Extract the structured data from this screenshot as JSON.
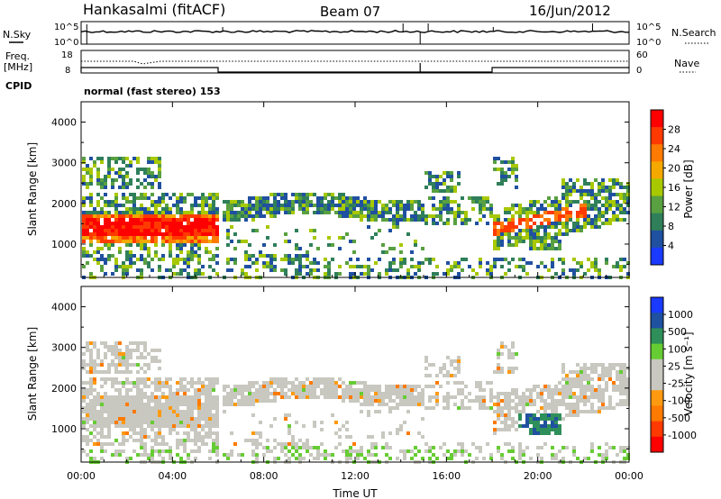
{
  "header": {
    "station": "Hankasalmi (fitACF)",
    "beam": "Beam 07",
    "date": "16/Jun/2012"
  },
  "top_panel": {
    "left_label": "N.Sky",
    "right_label": "N.Search",
    "left_ticks": [
      "10^5",
      "10^0"
    ],
    "right_ticks": [
      "10^5",
      "10^0"
    ]
  },
  "freq_panel": {
    "left_label_1": "Freq.",
    "left_label_2": "[MHz]",
    "right_label": "Nave",
    "left_ticks": [
      "18",
      "8"
    ],
    "right_ticks": [
      "60",
      "0"
    ],
    "cpid_label": "CPID",
    "mode_text": "normal (fast stereo) 153"
  },
  "chart_data": [
    {
      "type": "heatmap",
      "name": "power",
      "ylabel": "Slant Range [km]",
      "xlabel": "Time UT",
      "yticks": [
        "4000",
        "3000",
        "2000",
        "1000"
      ],
      "ylim": [
        180,
        4500
      ],
      "colorbar_label": "Power [dB]",
      "colorbar_ticks": [
        "28",
        "24",
        "20",
        "16",
        "12",
        "8",
        "4"
      ],
      "colorbar_colors": [
        "#ff0000",
        "#ff3a00",
        "#ff7a00",
        "#f4a800",
        "#a8c800",
        "#58a040",
        "#2f7f5a",
        "#2050a0",
        "#1a3aff"
      ]
    },
    {
      "type": "heatmap",
      "name": "velocity",
      "ylabel": "Slant Range [km]",
      "xlabel": "Time UT",
      "yticks": [
        "4000",
        "3000",
        "2000",
        "1000"
      ],
      "ylim": [
        180,
        4500
      ],
      "colorbar_label": "Velocity [m s⁻¹]",
      "colorbar_ticks": [
        "1000",
        "500",
        "100",
        "25",
        "-25",
        "-100",
        "-500",
        "-1000"
      ],
      "colorbar_colors": [
        "#1a3aff",
        "#2050a0",
        "#2f8f5a",
        "#66cc33",
        "#c8c8c0",
        "#c8c8c0",
        "#ff9a10",
        "#ff7a00",
        "#ff3a00",
        "#ff0000"
      ]
    }
  ],
  "x_axis": {
    "ticks": [
      "00:00",
      "04:00",
      "08:00",
      "12:00",
      "16:00",
      "20:00",
      "00:00"
    ],
    "label": "Time UT"
  }
}
